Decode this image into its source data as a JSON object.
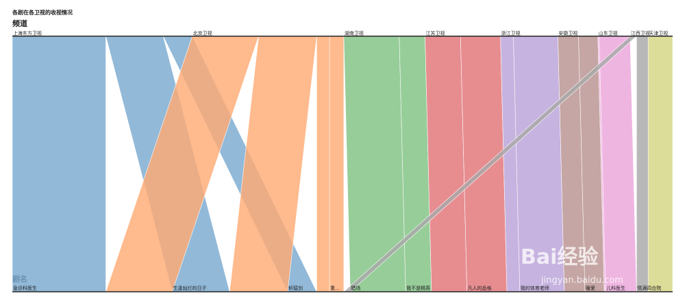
{
  "chart_data": {
    "type": "parallel-sets",
    "title": "各剧在各卫视的收视情况",
    "top_dimension": "频道",
    "bottom_dimension": "剧名",
    "channels": [
      "上海东方卫视",
      "北京卫视",
      "湖南卫视",
      "江苏卫视",
      "浙江卫视",
      "安徽卫视",
      "山东卫视",
      "江西卫视",
      "天津卫视"
    ],
    "dramas": [
      "急诊科医生",
      "生逢灿烂的日子",
      "轩辕剑",
      "重…",
      "猎场",
      "我不是精英",
      "凡人的品格",
      "我的体育老师",
      "暖爱",
      "儿科医生",
      "情满四合院"
    ],
    "colors": {
      "上海东方卫视": "#7aa9d0",
      "北京卫视": "#ffab74",
      "湖南卫视": "#80c283",
      "江苏卫视": "#e27477",
      "浙江卫视": "#b9a2d8",
      "安徽卫视": "#b89390",
      "山东卫视": "#eba5da",
      "江西卫视": "#a8a8a8",
      "天津卫视": "#d5d684"
    },
    "flows": [
      {
        "channel": "上海东方卫视",
        "drama": "急诊科医生",
        "value": 1.45
      },
      {
        "channel": "上海东方卫视",
        "drama": "生逢灿烂的日子",
        "value": 0.89
      },
      {
        "channel": "上海东方卫视",
        "drama": "轩辕剑",
        "value": 0.45
      },
      {
        "channel": "北京卫视",
        "drama": "急诊科医生",
        "value": 1.03
      },
      {
        "channel": "北京卫视",
        "drama": "生逢灿烂的日子",
        "value": 0.9
      },
      {
        "channel": "北京卫视",
        "drama": "轩辕剑",
        "value": 0.2
      },
      {
        "channel": "北京卫视",
        "drama": "重…",
        "value": 0.22
      },
      {
        "channel": "湖南卫视",
        "drama": "猎场",
        "value": 0.86
      },
      {
        "channel": "湖南卫视",
        "drama": "我不是精英",
        "value": 0.4
      },
      {
        "channel": "江苏卫视",
        "drama": "我不是精英",
        "value": 0.55
      },
      {
        "channel": "江苏卫视",
        "drama": "凡人的品格",
        "value": 0.62
      },
      {
        "channel": "浙江卫视",
        "drama": "凡人的品格",
        "value": 0.2
      },
      {
        "channel": "浙江卫视",
        "drama": "我的体育老师",
        "value": 0.69
      },
      {
        "channel": "安徽卫视",
        "drama": "我的体育老师",
        "value": 0.32
      },
      {
        "channel": "安徽卫视",
        "drama": "暖爱",
        "value": 0.3
      },
      {
        "channel": "山东卫视",
        "drama": "暖爱",
        "value": 0.02
      },
      {
        "channel": "山东卫视",
        "drama": "儿科医生",
        "value": 0.48
      },
      {
        "channel": "江西卫视",
        "drama": "重…",
        "value": 0.1
      },
      {
        "channel": "江西卫视",
        "drama": "情满四合院",
        "value": 0.18
      },
      {
        "channel": "天津卫视",
        "drama": "情满四合院",
        "value": 0.38
      }
    ],
    "flows_drawn_last": [
      "北京卫视→急诊科医生",
      "江西卫视→重…"
    ]
  },
  "watermark": {
    "brand": "Bai经验",
    "url": "jingyan.baidu.com"
  }
}
